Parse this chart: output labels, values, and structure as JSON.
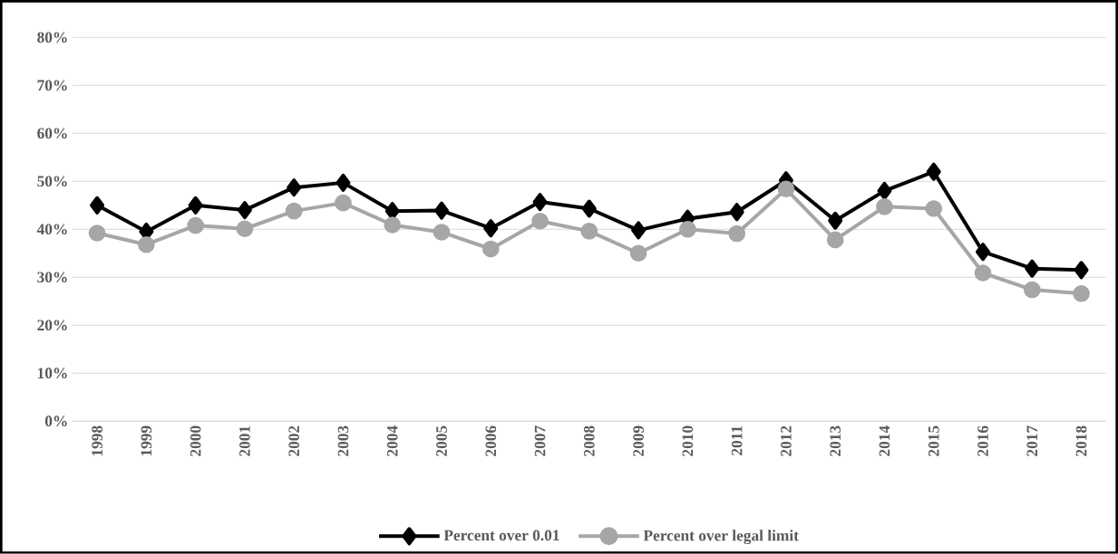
{
  "chart_data": {
    "type": "line",
    "categories": [
      "1998",
      "1999",
      "2000",
      "2001",
      "2002",
      "2003",
      "2004",
      "2005",
      "2006",
      "2007",
      "2008",
      "2009",
      "2010",
      "2011",
      "2012",
      "2013",
      "2014",
      "2015",
      "2016",
      "2017",
      "2018"
    ],
    "series": [
      {
        "name": "Percent over 0.01",
        "color": "#000000",
        "marker": "diamond",
        "values": [
          45,
          39.5,
          45,
          44,
          48.7,
          49.7,
          43.8,
          43.9,
          40.2,
          45.7,
          44.3,
          39.8,
          42.2,
          43.6,
          50.2,
          41.8,
          48,
          52,
          35.3,
          31.8,
          31.5
        ]
      },
      {
        "name": "Percent over legal limit",
        "color": "#a6a6a6",
        "marker": "circle",
        "values": [
          39.2,
          36.8,
          40.8,
          40.1,
          43.8,
          45.5,
          40.9,
          39.4,
          35.9,
          41.7,
          39.6,
          35,
          40,
          39.1,
          48.4,
          37.8,
          44.7,
          44.3,
          30.9,
          27.4,
          26.6
        ]
      }
    ],
    "ylim": [
      0,
      80
    ],
    "yticks": [
      {
        "value": 0,
        "label": "0%"
      },
      {
        "value": 10,
        "label": "10%"
      },
      {
        "value": 20,
        "label": "20%"
      },
      {
        "value": 30,
        "label": "30%"
      },
      {
        "value": 40,
        "label": "40%"
      },
      {
        "value": 50,
        "label": "50%"
      },
      {
        "value": 60,
        "label": "60%"
      },
      {
        "value": 70,
        "label": "70%"
      },
      {
        "value": 80,
        "label": "80%"
      }
    ],
    "grid": "y",
    "legend": "bottom",
    "line_style": "solid"
  }
}
